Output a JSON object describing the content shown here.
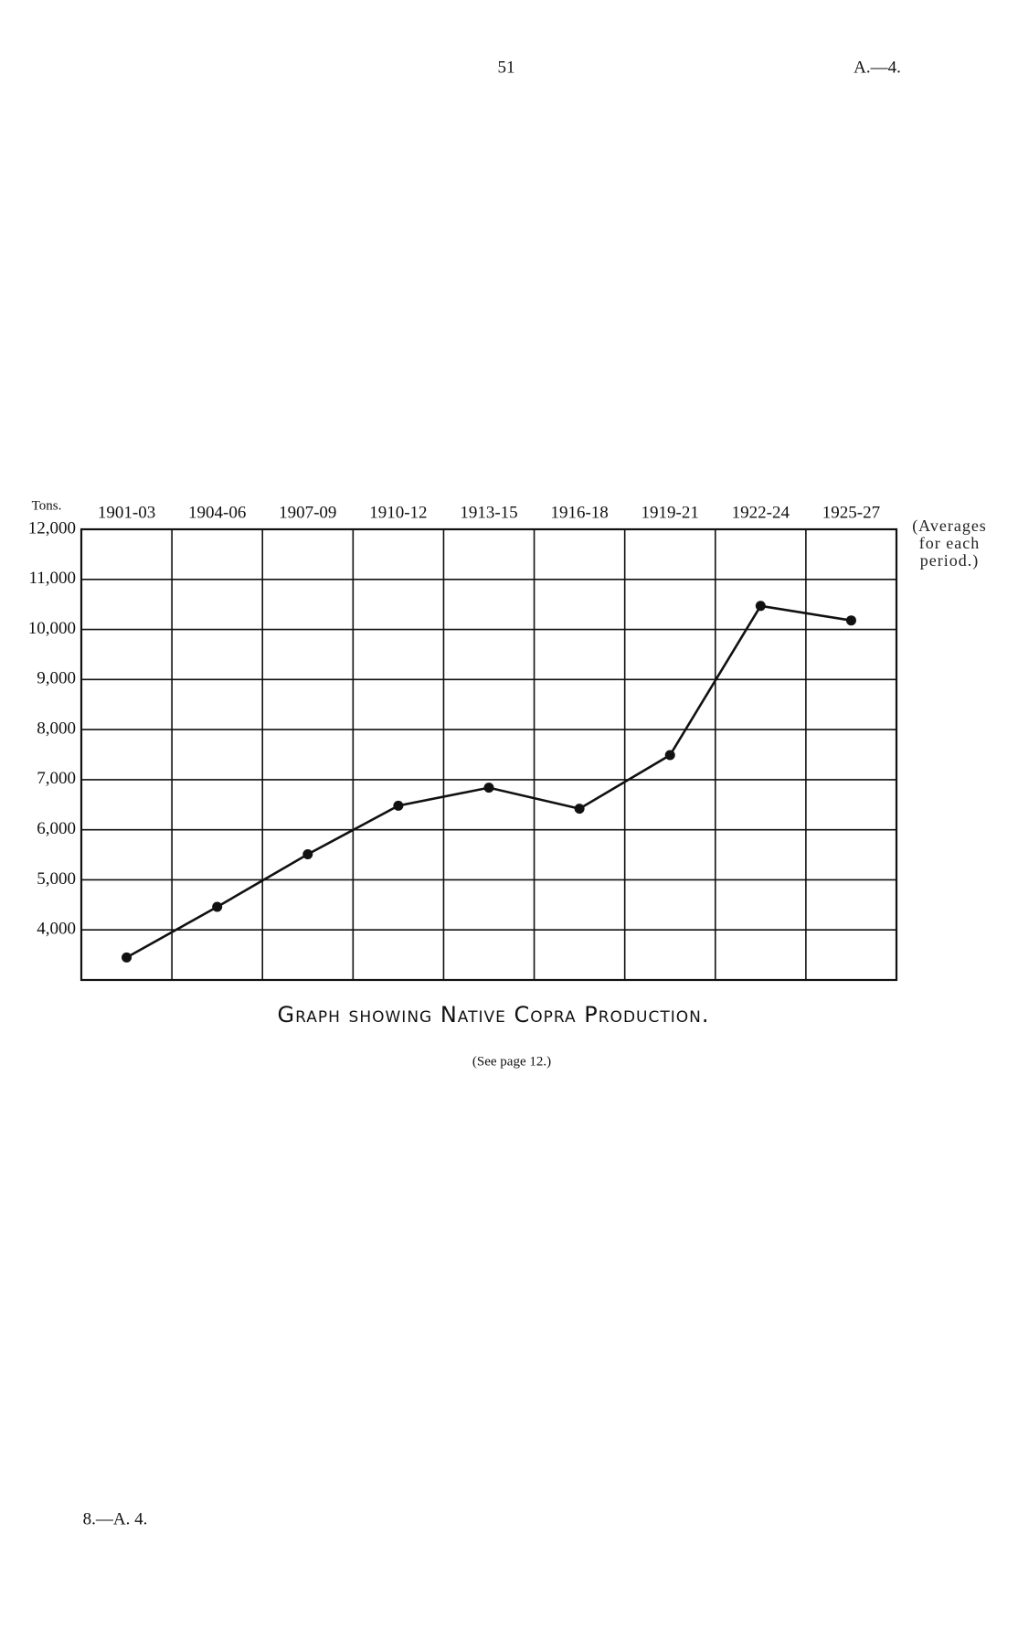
{
  "page": {
    "page_number": "51",
    "reference": "A.—4.",
    "footer": "8.—A. 4."
  },
  "chart_data": {
    "type": "line",
    "title": "Graph showing Native Copra Production.",
    "subtitle": "(See page 12.)",
    "y_label": "Tons.",
    "annotation": "(Averages for each period.)",
    "categories": [
      "1901-03",
      "1904-06",
      "1907-09",
      "1910-12",
      "1913-15",
      "1916-18",
      "1919-21",
      "1922-24",
      "1925-27"
    ],
    "series": [
      {
        "color": "#111111",
        "values": [
          3450,
          4460,
          5510,
          6480,
          6840,
          6420,
          7490,
          10470,
          10180
        ]
      }
    ],
    "ylim": [
      3000,
      12000
    ],
    "yticks": [
      {
        "value": 4000,
        "label": "4,000"
      },
      {
        "value": 5000,
        "label": "5,000"
      },
      {
        "value": 6000,
        "label": "6,000"
      },
      {
        "value": 7000,
        "label": "7,000"
      },
      {
        "value": 8000,
        "label": "8,000"
      },
      {
        "value": 9000,
        "label": "9,000"
      },
      {
        "value": 10000,
        "label": "10,000"
      },
      {
        "value": 11000,
        "label": "11,000"
      },
      {
        "value": 12000,
        "label": "12,000"
      }
    ],
    "grid": true
  }
}
